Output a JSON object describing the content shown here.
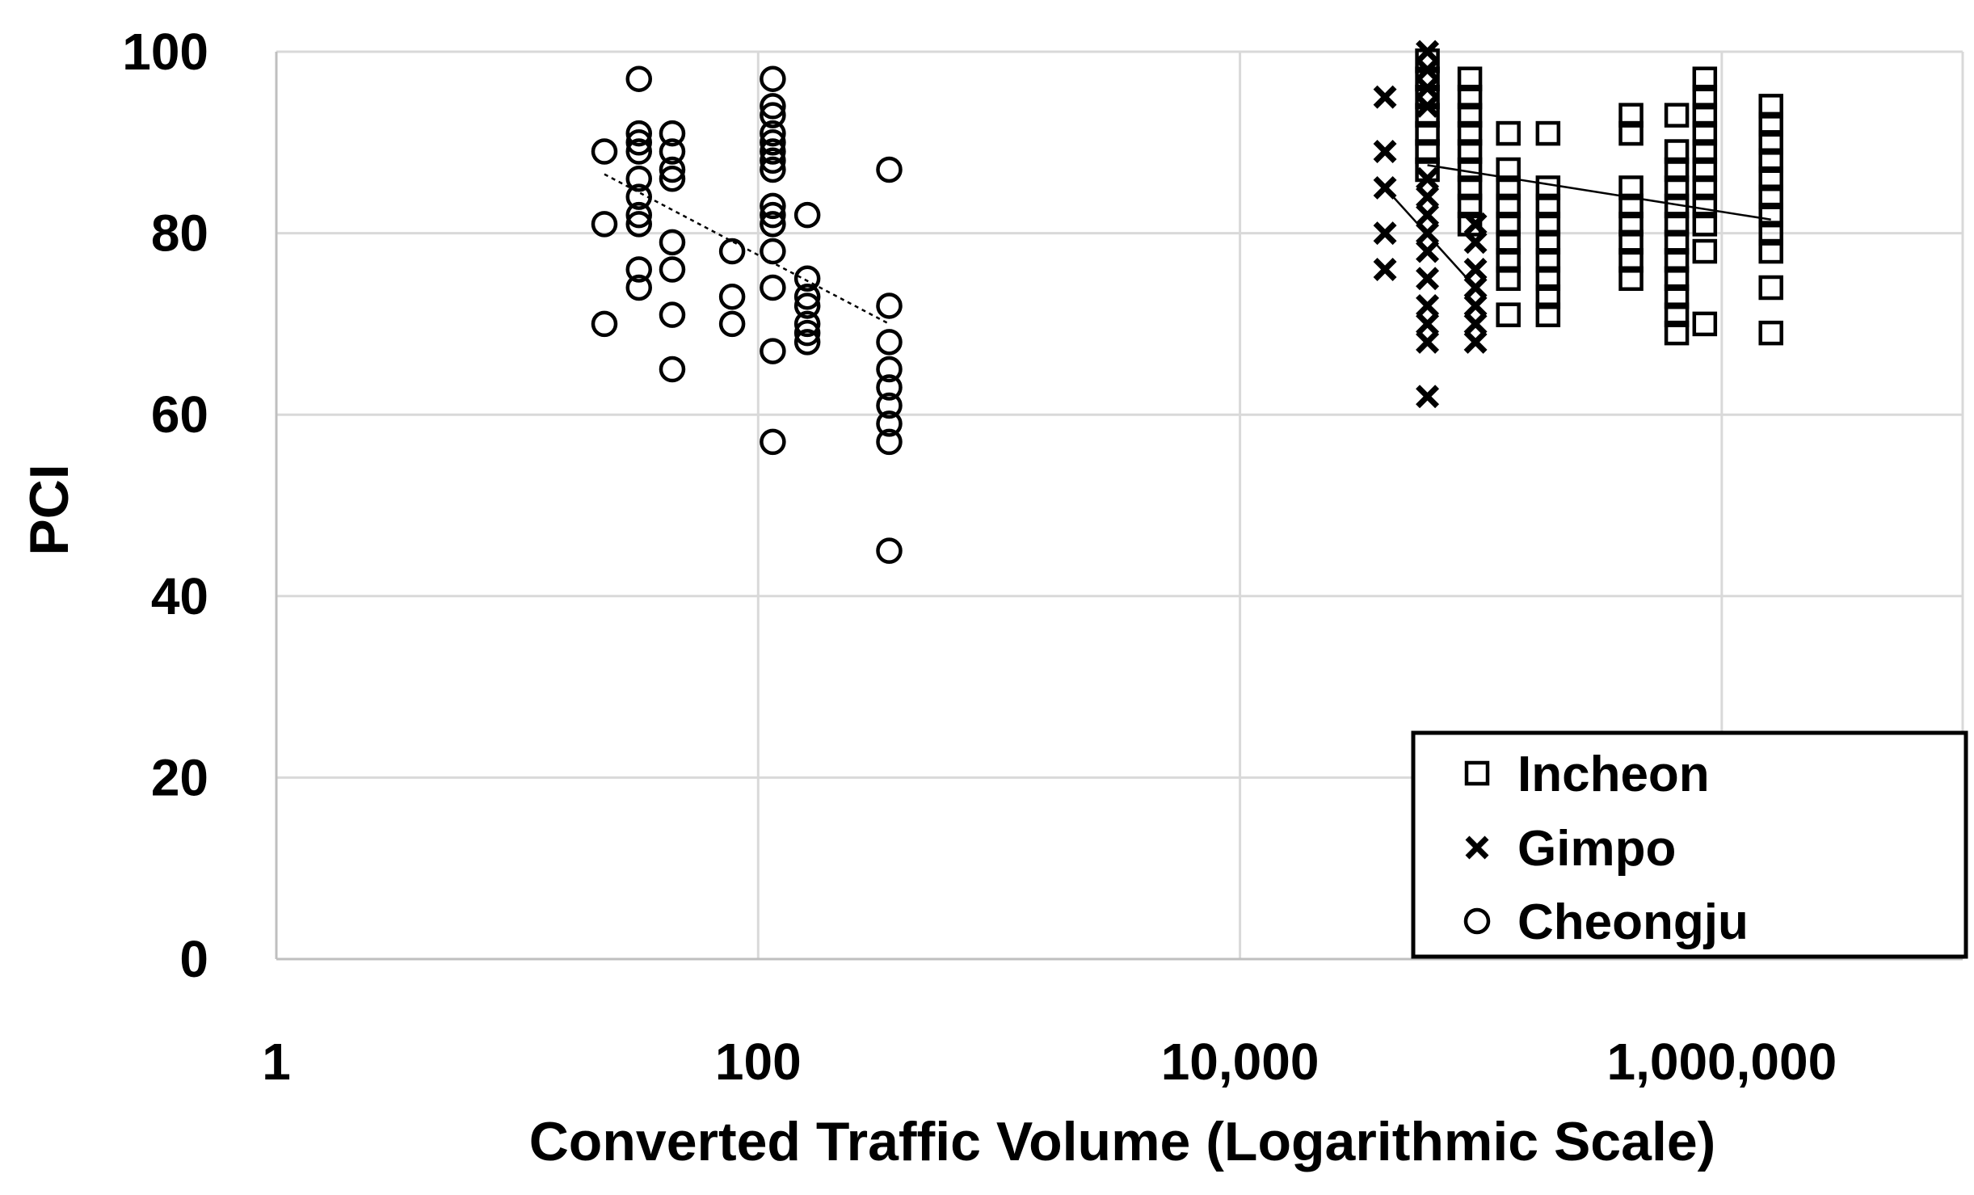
{
  "chart_data": {
    "type": "scatter",
    "title": "",
    "xlabel": "Converted Traffic Volume (Logarithmic Scale)",
    "ylabel": "PCI",
    "xscale": "log",
    "xlim": [
      1,
      10000000
    ],
    "ylim": [
      0,
      100
    ],
    "xticks": [
      1,
      100,
      10000,
      1000000
    ],
    "xtick_labels": [
      "1",
      "100",
      "10,000",
      "1,000,000"
    ],
    "yticks": [
      0,
      20,
      40,
      60,
      80,
      100
    ],
    "ytick_labels": [
      "0",
      "20",
      "40",
      "60",
      "80",
      "100"
    ],
    "grid": true,
    "legend_position": "bottom-right",
    "series": [
      {
        "name": "Incheon",
        "marker": "square",
        "points": [
          [
            60000,
            99
          ],
          [
            60000,
            97
          ],
          [
            60000,
            95
          ],
          [
            60000,
            93
          ],
          [
            60000,
            91
          ],
          [
            60000,
            89
          ],
          [
            60000,
            87
          ],
          [
            90000,
            97
          ],
          [
            90000,
            95
          ],
          [
            90000,
            93
          ],
          [
            90000,
            91
          ],
          [
            90000,
            89
          ],
          [
            90000,
            87
          ],
          [
            90000,
            85
          ],
          [
            90000,
            83
          ],
          [
            90000,
            81
          ],
          [
            130000,
            91
          ],
          [
            130000,
            87
          ],
          [
            130000,
            85
          ],
          [
            130000,
            83
          ],
          [
            130000,
            81
          ],
          [
            130000,
            79
          ],
          [
            130000,
            77
          ],
          [
            130000,
            75
          ],
          [
            130000,
            71
          ],
          [
            190000,
            91
          ],
          [
            190000,
            85
          ],
          [
            190000,
            83
          ],
          [
            190000,
            81
          ],
          [
            190000,
            79
          ],
          [
            190000,
            77
          ],
          [
            190000,
            75
          ],
          [
            190000,
            73
          ],
          [
            190000,
            71
          ],
          [
            420000,
            93
          ],
          [
            420000,
            91
          ],
          [
            420000,
            85
          ],
          [
            420000,
            83
          ],
          [
            420000,
            81
          ],
          [
            420000,
            79
          ],
          [
            420000,
            77
          ],
          [
            420000,
            75
          ],
          [
            650000,
            93
          ],
          [
            650000,
            89
          ],
          [
            650000,
            87
          ],
          [
            650000,
            85
          ],
          [
            650000,
            83
          ],
          [
            650000,
            81
          ],
          [
            650000,
            79
          ],
          [
            650000,
            77
          ],
          [
            650000,
            75
          ],
          [
            650000,
            73
          ],
          [
            650000,
            71
          ],
          [
            650000,
            69
          ],
          [
            850000,
            97
          ],
          [
            850000,
            95
          ],
          [
            850000,
            93
          ],
          [
            850000,
            91
          ],
          [
            850000,
            89
          ],
          [
            850000,
            87
          ],
          [
            850000,
            85
          ],
          [
            850000,
            83
          ],
          [
            850000,
            81
          ],
          [
            850000,
            78
          ],
          [
            850000,
            70
          ],
          [
            1600000,
            94
          ],
          [
            1600000,
            92
          ],
          [
            1600000,
            90
          ],
          [
            1600000,
            88
          ],
          [
            1600000,
            86
          ],
          [
            1600000,
            84
          ],
          [
            1600000,
            82
          ],
          [
            1600000,
            80
          ],
          [
            1600000,
            78
          ],
          [
            1600000,
            74
          ],
          [
            1600000,
            69
          ]
        ],
        "trendline": [
          [
            60000,
            87.5
          ],
          [
            1600000,
            81.5
          ]
        ]
      },
      {
        "name": "Gimpo",
        "marker": "x",
        "points": [
          [
            40000,
            95
          ],
          [
            40000,
            89
          ],
          [
            40000,
            85
          ],
          [
            40000,
            80
          ],
          [
            40000,
            76
          ],
          [
            60000,
            100
          ],
          [
            60000,
            98
          ],
          [
            60000,
            96
          ],
          [
            60000,
            94
          ],
          [
            60000,
            86
          ],
          [
            60000,
            84
          ],
          [
            60000,
            82
          ],
          [
            60000,
            80
          ],
          [
            60000,
            78
          ],
          [
            60000,
            75
          ],
          [
            60000,
            72
          ],
          [
            60000,
            70
          ],
          [
            60000,
            68
          ],
          [
            60000,
            62
          ],
          [
            95000,
            81
          ],
          [
            95000,
            79
          ],
          [
            95000,
            76
          ],
          [
            95000,
            74
          ],
          [
            95000,
            72
          ],
          [
            95000,
            70
          ],
          [
            95000,
            68
          ]
        ],
        "trendline": [
          [
            40000,
            85
          ],
          [
            95000,
            74
          ]
        ]
      },
      {
        "name": "Cheongju",
        "marker": "circle",
        "points": [
          [
            23,
            89
          ],
          [
            23,
            81
          ],
          [
            23,
            70
          ],
          [
            32,
            97
          ],
          [
            32,
            91
          ],
          [
            32,
            90
          ],
          [
            32,
            89
          ],
          [
            32,
            86
          ],
          [
            32,
            84
          ],
          [
            32,
            82
          ],
          [
            32,
            81
          ],
          [
            32,
            76
          ],
          [
            32,
            74
          ],
          [
            44,
            91
          ],
          [
            44,
            89
          ],
          [
            44,
            87
          ],
          [
            44,
            86
          ],
          [
            44,
            79
          ],
          [
            44,
            76
          ],
          [
            44,
            71
          ],
          [
            44,
            65
          ],
          [
            78,
            78
          ],
          [
            78,
            73
          ],
          [
            78,
            70
          ],
          [
            115,
            97
          ],
          [
            115,
            94
          ],
          [
            115,
            93
          ],
          [
            115,
            91
          ],
          [
            115,
            90
          ],
          [
            115,
            89
          ],
          [
            115,
            88
          ],
          [
            115,
            87
          ],
          [
            115,
            83
          ],
          [
            115,
            82
          ],
          [
            115,
            81
          ],
          [
            115,
            78
          ],
          [
            115,
            74
          ],
          [
            115,
            67
          ],
          [
            115,
            57
          ],
          [
            160,
            82
          ],
          [
            160,
            75
          ],
          [
            160,
            73
          ],
          [
            160,
            72
          ],
          [
            160,
            70
          ],
          [
            160,
            69
          ],
          [
            160,
            68
          ],
          [
            350,
            87
          ],
          [
            350,
            72
          ],
          [
            350,
            68
          ],
          [
            350,
            65
          ],
          [
            350,
            63
          ],
          [
            350,
            61
          ],
          [
            350,
            59
          ],
          [
            350,
            57
          ],
          [
            350,
            45
          ]
        ],
        "trendline": [
          [
            23,
            86.5
          ],
          [
            350,
            70
          ]
        ]
      }
    ]
  }
}
